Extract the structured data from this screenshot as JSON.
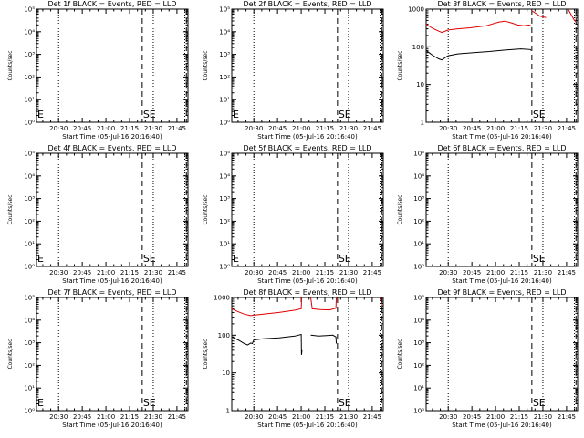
{
  "chart_data": [
    {
      "type": "line",
      "title": "Det 1f BLACK = Events, RED = LLD",
      "xlabel": "Start Time (05-Jul-16 20:16:40)",
      "ylabel": "Counts/sec",
      "yscale": "log",
      "ylim": [
        1,
        100000
      ],
      "yticks": [
        "10⁰",
        "10¹",
        "10²",
        "10³",
        "10⁴",
        "10⁵"
      ],
      "xlim": [
        0,
        96
      ],
      "xticks": [
        {
          "t": 14,
          "label": "20:30"
        },
        {
          "t": 29,
          "label": "20:45"
        },
        {
          "t": 44,
          "label": "21:00"
        },
        {
          "t": 59,
          "label": "21:15"
        },
        {
          "t": 74,
          "label": "21:30"
        },
        {
          "t": 89,
          "label": "21:45"
        }
      ],
      "vlines_dotted": [
        14,
        74,
        94
      ],
      "vlines_dashed": [
        67,
        95
      ],
      "markers": [
        {
          "t": 0,
          "label": "E"
        },
        {
          "t": 67,
          "label": "S"
        },
        {
          "t": 71,
          "label": "E"
        }
      ],
      "series": []
    },
    {
      "type": "line",
      "title": "Det 2f BLACK = Events, RED = LLD",
      "xlabel": "Start Time (05-Jul-16 20:16:40)",
      "ylabel": "Counts/sec",
      "yscale": "log",
      "ylim": [
        1,
        100000
      ],
      "yticks": [
        "10⁰",
        "10¹",
        "10²",
        "10³",
        "10⁴",
        "10⁵"
      ],
      "xlim": [
        0,
        96
      ],
      "xticks": [
        {
          "t": 14,
          "label": "20:30"
        },
        {
          "t": 29,
          "label": "20:45"
        },
        {
          "t": 44,
          "label": "21:00"
        },
        {
          "t": 59,
          "label": "21:15"
        },
        {
          "t": 74,
          "label": "21:30"
        },
        {
          "t": 89,
          "label": "21:45"
        }
      ],
      "vlines_dotted": [
        14,
        74,
        94
      ],
      "vlines_dashed": [
        67,
        95
      ],
      "markers": [
        {
          "t": 0,
          "label": "E"
        },
        {
          "t": 67,
          "label": "S"
        },
        {
          "t": 71,
          "label": "E"
        }
      ],
      "series": []
    },
    {
      "type": "line",
      "title": "Det 3f BLACK = Events, RED = LLD",
      "xlabel": "Start Time (05-Jul-16 20:16:40)",
      "ylabel": "Counts/sec",
      "yscale": "log",
      "ylim": [
        1,
        1000
      ],
      "yticks": [
        "1",
        "10",
        "100",
        "1000"
      ],
      "xlim": [
        0,
        96
      ],
      "xticks": [
        {
          "t": 14,
          "label": "20:30"
        },
        {
          "t": 29,
          "label": "20:45"
        },
        {
          "t": 44,
          "label": "21:00"
        },
        {
          "t": 59,
          "label": "21:15"
        },
        {
          "t": 74,
          "label": "21:30"
        },
        {
          "t": 89,
          "label": "21:45"
        }
      ],
      "vlines_dotted": [
        14,
        74,
        94
      ],
      "vlines_dashed": [
        67,
        95
      ],
      "markers": [
        {
          "t": 67,
          "label": "S"
        },
        {
          "t": 71,
          "label": "E"
        }
      ],
      "series": [
        {
          "color": "#000000",
          "points": [
            [
              0,
              80
            ],
            [
              4,
              60
            ],
            [
              8,
              48
            ],
            [
              10,
              45
            ],
            [
              13,
              55
            ],
            [
              14,
              58
            ],
            [
              20,
              65
            ],
            [
              30,
              70
            ],
            [
              40,
              75
            ],
            [
              50,
              82
            ],
            [
              60,
              88
            ],
            [
              66,
              85
            ],
            [
              66.5,
              80
            ]
          ]
        },
        {
          "color": "#e00000",
          "points": [
            [
              0,
              400
            ],
            [
              4,
              310
            ],
            [
              8,
              260
            ],
            [
              10,
              240
            ],
            [
              13,
              270
            ],
            [
              14,
              280
            ],
            [
              20,
              300
            ],
            [
              28,
              320
            ],
            [
              38,
              360
            ],
            [
              46,
              450
            ],
            [
              50,
              480
            ],
            [
              54,
              430
            ],
            [
              58,
              380
            ],
            [
              62,
              360
            ],
            [
              65,
              380
            ],
            [
              66.5,
              360
            ]
          ]
        },
        {
          "color": "#e00000",
          "points": [
            [
              67,
              900
            ],
            [
              69,
              800
            ],
            [
              72,
              650
            ],
            [
              76,
              600
            ]
          ]
        },
        {
          "color": "#e00000",
          "points": [
            [
              90,
              1000
            ],
            [
              92,
              700
            ],
            [
              94,
              500
            ],
            [
              95,
              460
            ]
          ]
        }
      ]
    },
    {
      "type": "line",
      "title": "Det 4f BLACK = Events, RED = LLD",
      "xlabel": "Start Time (05-Jul-16 20:16:40)",
      "ylabel": "Counts/sec",
      "yscale": "log",
      "ylim": [
        1,
        100000
      ],
      "yticks": [
        "10⁰",
        "10¹",
        "10²",
        "10³",
        "10⁴",
        "10⁵"
      ],
      "xlim": [
        0,
        96
      ],
      "xticks": [
        {
          "t": 14,
          "label": "20:30"
        },
        {
          "t": 29,
          "label": "20:45"
        },
        {
          "t": 44,
          "label": "21:00"
        },
        {
          "t": 59,
          "label": "21:15"
        },
        {
          "t": 74,
          "label": "21:30"
        },
        {
          "t": 89,
          "label": "21:45"
        }
      ],
      "vlines_dotted": [
        14,
        74,
        94
      ],
      "vlines_dashed": [
        67,
        95
      ],
      "markers": [
        {
          "t": 0,
          "label": "E"
        },
        {
          "t": 67,
          "label": "S"
        },
        {
          "t": 71,
          "label": "E"
        }
      ],
      "series": []
    },
    {
      "type": "line",
      "title": "Det 5f BLACK = Events, RED = LLD",
      "xlabel": "Start Time (05-Jul-16 20:16:40)",
      "ylabel": "Counts/sec",
      "yscale": "log",
      "ylim": [
        1,
        100000
      ],
      "yticks": [
        "10⁰",
        "10¹",
        "10²",
        "10³",
        "10⁴",
        "10⁵"
      ],
      "xlim": [
        0,
        96
      ],
      "xticks": [
        {
          "t": 14,
          "label": "20:30"
        },
        {
          "t": 29,
          "label": "20:45"
        },
        {
          "t": 44,
          "label": "21:00"
        },
        {
          "t": 59,
          "label": "21:15"
        },
        {
          "t": 74,
          "label": "21:30"
        },
        {
          "t": 89,
          "label": "21:45"
        }
      ],
      "vlines_dotted": [
        14,
        74,
        94
      ],
      "vlines_dashed": [
        67,
        95
      ],
      "markers": [
        {
          "t": 0,
          "label": "E"
        },
        {
          "t": 67,
          "label": "S"
        },
        {
          "t": 71,
          "label": "E"
        }
      ],
      "series": []
    },
    {
      "type": "line",
      "title": "Det 6f BLACK = Events, RED = LLD",
      "xlabel": "Start Time (05-Jul-16 20:16:40)",
      "ylabel": "Counts/sec",
      "yscale": "log",
      "ylim": [
        1,
        100000
      ],
      "yticks": [
        "10⁰",
        "10¹",
        "10²",
        "10³",
        "10⁴",
        "10⁵"
      ],
      "xlim": [
        0,
        96
      ],
      "xticks": [
        {
          "t": 14,
          "label": "20:30"
        },
        {
          "t": 29,
          "label": "20:45"
        },
        {
          "t": 44,
          "label": "21:00"
        },
        {
          "t": 59,
          "label": "21:15"
        },
        {
          "t": 74,
          "label": "21:30"
        },
        {
          "t": 89,
          "label": "21:45"
        }
      ],
      "vlines_dotted": [
        14,
        74,
        94
      ],
      "vlines_dashed": [
        67,
        95
      ],
      "markers": [
        {
          "t": 67,
          "label": "S"
        },
        {
          "t": 71,
          "label": "E"
        }
      ],
      "series": []
    },
    {
      "type": "line",
      "title": "Det 7f BLACK = Events, RED = LLD",
      "xlabel": "Start Time (05-Jul-16 20:16:40)",
      "ylabel": "Counts/sec",
      "yscale": "log",
      "ylim": [
        1,
        100000
      ],
      "yticks": [
        "10⁰",
        "10¹",
        "10²",
        "10³",
        "10⁴",
        "10⁵"
      ],
      "xlim": [
        0,
        96
      ],
      "xticks": [
        {
          "t": 14,
          "label": "20:30"
        },
        {
          "t": 29,
          "label": "20:45"
        },
        {
          "t": 44,
          "label": "21:00"
        },
        {
          "t": 59,
          "label": "21:15"
        },
        {
          "t": 74,
          "label": "21:30"
        },
        {
          "t": 89,
          "label": "21:45"
        }
      ],
      "vlines_dotted": [
        14,
        74,
        94
      ],
      "vlines_dashed": [
        67,
        95
      ],
      "markers": [
        {
          "t": 0,
          "label": "E"
        },
        {
          "t": 67,
          "label": "S"
        },
        {
          "t": 71,
          "label": "E"
        }
      ],
      "series": []
    },
    {
      "type": "line",
      "title": "Det 8f BLACK = Events, RED = LLD",
      "xlabel": "Start Time (05-Jul-16 20:16:40)",
      "ylabel": "Counts/sec",
      "yscale": "log",
      "ylim": [
        1,
        1000
      ],
      "yticks": [
        "1",
        "10",
        "100",
        "1000"
      ],
      "xlim": [
        0,
        96
      ],
      "xticks": [
        {
          "t": 14,
          "label": "20:30"
        },
        {
          "t": 29,
          "label": "20:45"
        },
        {
          "t": 44,
          "label": "21:00"
        },
        {
          "t": 59,
          "label": "21:15"
        },
        {
          "t": 74,
          "label": "21:30"
        },
        {
          "t": 89,
          "label": "21:45"
        }
      ],
      "vlines_dotted": [
        14,
        74,
        94
      ],
      "vlines_dashed": [
        67,
        95
      ],
      "markers": [
        {
          "t": 67,
          "label": "S"
        },
        {
          "t": 71,
          "label": "E"
        }
      ],
      "series": [
        {
          "color": "#000000",
          "points": [
            [
              0,
              90
            ],
            [
              4,
              75
            ],
            [
              8,
              60
            ],
            [
              10,
              55
            ],
            [
              12,
              62
            ],
            [
              13,
              60
            ],
            [
              14,
              75
            ],
            [
              20,
              80
            ],
            [
              30,
              85
            ],
            [
              40,
              95
            ],
            [
              44,
              105
            ],
            [
              44.2,
              30
            ],
            [
              44.5,
              40
            ]
          ]
        },
        {
          "color": "#000000",
          "points": [
            [
              50,
              100
            ],
            [
              55,
              95
            ],
            [
              60,
              98
            ],
            [
              64,
              100
            ],
            [
              66,
              90
            ],
            [
              66.3,
              60
            ]
          ]
        },
        {
          "color": "#e00000",
          "points": [
            [
              0,
              500
            ],
            [
              4,
              420
            ],
            [
              8,
              360
            ],
            [
              12,
              330
            ],
            [
              14,
              340
            ],
            [
              20,
              360
            ],
            [
              30,
              400
            ],
            [
              40,
              460
            ],
            [
              44,
              500
            ],
            [
              44.3,
              1000
            ]
          ]
        },
        {
          "color": "#e00000",
          "points": [
            [
              50,
              1000
            ],
            [
              51,
              500
            ],
            [
              56,
              480
            ],
            [
              62,
              470
            ],
            [
              66,
              520
            ],
            [
              66.3,
              1000
            ]
          ]
        },
        {
          "color": "#e00000",
          "points": [
            [
              94,
              1000
            ],
            [
              95,
              600
            ]
          ]
        }
      ]
    },
    {
      "type": "line",
      "title": "Det 9f BLACK = Events, RED = LLD",
      "xlabel": "Start Time (05-Jul-16 20:16:40)",
      "ylabel": "Counts/sec",
      "yscale": "log",
      "ylim": [
        1,
        100000
      ],
      "yticks": [
        "10⁰",
        "10¹",
        "10²",
        "10³",
        "10⁴",
        "10⁵"
      ],
      "xlim": [
        0,
        96
      ],
      "xticks": [
        {
          "t": 14,
          "label": "20:30"
        },
        {
          "t": 29,
          "label": "20:45"
        },
        {
          "t": 44,
          "label": "21:00"
        },
        {
          "t": 59,
          "label": "21:15"
        },
        {
          "t": 74,
          "label": "21:30"
        },
        {
          "t": 89,
          "label": "21:45"
        }
      ],
      "vlines_dotted": [
        14,
        74,
        94
      ],
      "vlines_dashed": [
        67,
        95
      ],
      "markers": [
        {
          "t": 67,
          "label": "S"
        },
        {
          "t": 71,
          "label": "E"
        }
      ],
      "series": []
    }
  ]
}
